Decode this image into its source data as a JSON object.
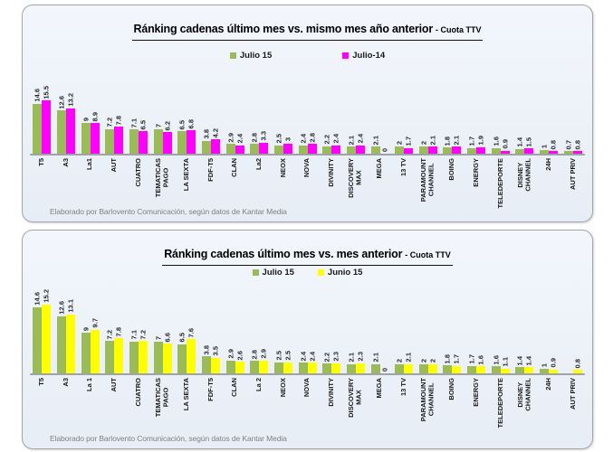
{
  "footer": "Elaborado por Barlovento Comunicación, según datos de Kantar Media",
  "colors": {
    "julio15_green": "#9BBB59",
    "julio14_magenta": "#FF00FF",
    "junio15_yellow": "#FFFF00",
    "panel_background": "#ECF1F9",
    "panel_border": "#A0A6AD",
    "axis_gray": "#9EA3A8"
  },
  "chart_data": [
    {
      "type": "bar",
      "title": "Ránking cadenas último mes vs. mismo mes año anterior",
      "title_suffix": "- Cuota TTV",
      "legend_position": "top-center",
      "grid": false,
      "ylim": [
        0,
        16
      ],
      "categories": [
        "T5",
        "A3",
        "La1",
        "AUT",
        "CUATRO",
        "TEMATICAS\nPAGO",
        "LA SEXTA",
        "FDF-T5",
        "CLAN",
        "La2",
        "NEOX",
        "NOVA",
        "DIVINITY",
        "DISCOVERY\nMAX",
        "MEGA",
        "13 TV",
        "PARAMOUNT\nCHANNEL",
        "BOING",
        "ENERGY",
        "TELEDEPORTE",
        "DISNEY\nCHANNEL",
        "24H",
        "AUT PRIV"
      ],
      "series": [
        {
          "name": "Julio 15",
          "color": "#9BBB59",
          "values": [
            14.6,
            12.6,
            9,
            7.2,
            7.1,
            7,
            6.5,
            3.8,
            2.9,
            2.8,
            2.5,
            2.4,
            2.2,
            2.1,
            2.1,
            2,
            2,
            1.8,
            1.7,
            1.6,
            1.4,
            1,
            0.7
          ]
        },
        {
          "name": "Julio-14",
          "color": "#FF00FF",
          "values": [
            15.5,
            13.2,
            8.9,
            7.8,
            6.5,
            6.2,
            6.8,
            4.2,
            2.4,
            3.3,
            3,
            2.8,
            2.4,
            2.4,
            0,
            1.7,
            2.1,
            2.1,
            1.9,
            0.9,
            1.5,
            0.8,
            0.8
          ]
        }
      ]
    },
    {
      "type": "bar",
      "title": "Ránking cadenas último mes vs. mes anterior",
      "title_suffix": "- Cuota TTV",
      "legend_position": "top-center",
      "grid": false,
      "ylim": [
        0,
        16
      ],
      "categories": [
        "T5",
        "A3",
        "La 1",
        "AUT",
        "CUATRO",
        "TEMATICAS\nPAGO",
        "LA SEXTA",
        "FDF-T5",
        "CLAN",
        "La 2",
        "NEOX",
        "NOVA",
        "DIVINITY",
        "DISCOVERY\nMAX",
        "MEGA",
        "13 TV",
        "PARAMOUNT\nCHANNEL",
        "BOING",
        "ENERGY",
        "TELEDEPORTE",
        "DISNEY\nCHANNEL",
        "24H",
        "AUT PRIV"
      ],
      "series": [
        {
          "name": "Julio 15",
          "color": "#9BBB59",
          "values": [
            14.6,
            12.6,
            9,
            7.2,
            7.1,
            7,
            6.5,
            3.8,
            2.9,
            2.8,
            2.5,
            2.4,
            2.2,
            2.1,
            2.1,
            2,
            2,
            1.8,
            1.7,
            1.6,
            1.4,
            1,
            null
          ]
        },
        {
          "name": "Junio 15",
          "color": "#FFFF00",
          "values": [
            15.2,
            13.1,
            9.7,
            7.8,
            7.2,
            6.6,
            7.6,
            3.5,
            2.6,
            2.9,
            2.5,
            2.4,
            2.3,
            2.3,
            0,
            2.1,
            2,
            1.7,
            1.6,
            1.1,
            1.4,
            0.9,
            0.8
          ]
        }
      ]
    }
  ]
}
